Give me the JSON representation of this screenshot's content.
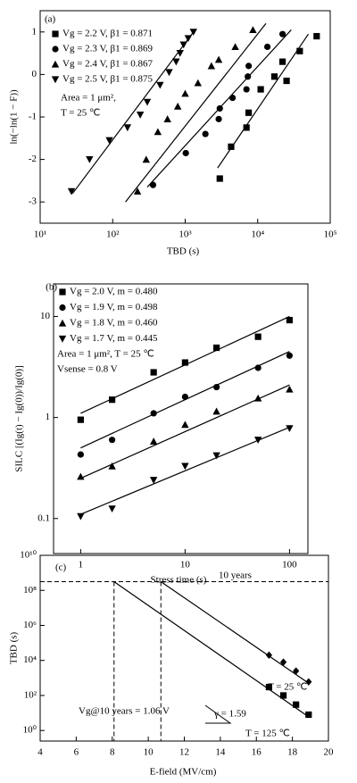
{
  "chart_data": [
    {
      "type": "scatter",
      "xlabel": "TBD (s)",
      "ylabel": "ln(−ln(1 − F))",
      "xlog": true,
      "xlim": [
        10,
        100000
      ],
      "xticks": [
        {
          "value": 10,
          "label": "10¹"
        },
        {
          "value": 100,
          "label": "10²"
        },
        {
          "value": 1000,
          "label": "10³"
        },
        {
          "value": 10000,
          "label": "10⁴"
        },
        {
          "value": 100000,
          "label": "10⁵"
        }
      ],
      "ylim": [
        -3.5,
        1.5
      ],
      "yticks": [
        -3,
        -2,
        -1,
        0,
        1
      ],
      "annotations": [
        "(a)",
        "Area = 1 μm²,",
        "T = 25 ℃"
      ],
      "series": [
        {
          "name": "Vg = 2.2 V, β1 = 0.871",
          "color": "#000000",
          "marker": "square",
          "x": [
            3000,
            4300,
            7000,
            7500,
            11000,
            17000,
            22000,
            25000,
            38000,
            65000
          ],
          "values": [
            -2.45,
            -1.7,
            -1.25,
            -0.9,
            -0.35,
            -0.05,
            0.3,
            -0.15,
            0.55,
            0.9
          ],
          "fit": {
            "x": [
              2800,
              50000
            ],
            "y": [
              -2.2,
              0.95
            ]
          }
        },
        {
          "name": "Vg = 2.3 V, β1 = 0.869",
          "color": "#000000",
          "marker": "circle",
          "x": [
            360,
            1020,
            1900,
            2900,
            3000,
            4500,
            7000,
            7300,
            7500,
            13600,
            22000
          ],
          "values": [
            -2.6,
            -1.85,
            -1.4,
            -1.05,
            -0.8,
            -0.55,
            -0.35,
            -0.05,
            0.2,
            0.65,
            0.95
          ],
          "fit": {
            "x": [
              300,
              29000
            ],
            "y": [
              -2.65,
              1.05
            ]
          }
        },
        {
          "name": "Vg = 2.4 V, β1 = 0.867",
          "color": "#000000",
          "marker": "triangle-up",
          "x": [
            220,
            290,
            420,
            570,
            790,
            1000,
            1500,
            2300,
            2900,
            4900,
            8600
          ],
          "values": [
            -2.75,
            -2.0,
            -1.35,
            -1.05,
            -0.75,
            -0.45,
            -0.2,
            0.2,
            0.35,
            0.65,
            1.05
          ],
          "fit": {
            "x": [
              150,
              13000
            ],
            "y": [
              -3.0,
              1.2
            ]
          }
        },
        {
          "name": "Vg = 2.5 V, β1 = 0.875",
          "color": "#000000",
          "marker": "triangle-down",
          "x": [
            27,
            48,
            90,
            160,
            240,
            300,
            450,
            600,
            750,
            850,
            950,
            1100,
            1300
          ],
          "values": [
            -2.75,
            -2.0,
            -1.55,
            -1.25,
            -0.95,
            -0.65,
            -0.25,
            0.05,
            0.3,
            0.5,
            0.7,
            0.85,
            1.0
          ],
          "fit": {
            "x": [
              28,
              1300
            ],
            "y": [
              -2.8,
              1.0
            ]
          }
        }
      ]
    },
    {
      "type": "scatter",
      "xlabel": "Stress time (s)",
      "ylabel": "SILC [(Ig(t) − Ig(0))/Ig(0)]",
      "xlog": true,
      "ylog": true,
      "xlim": [
        0.55,
        150
      ],
      "xticks": [
        1,
        10,
        100
      ],
      "ylim": [
        0.045,
        21
      ],
      "yticks": [
        0.1,
        1,
        10
      ],
      "annotations": [
        "(b)",
        "Area = 1 μm², T = 25 ℃",
        "Vsense = 0.8 V"
      ],
      "series": [
        {
          "name": "Vg = 2.0 V, m = 0.480",
          "color": "#000000",
          "marker": "square",
          "x": [
            1,
            2,
            5,
            10,
            20,
            50,
            100
          ],
          "values": [
            0.95,
            1.5,
            2.8,
            3.5,
            4.9,
            6.3,
            9.2
          ],
          "fit": {
            "x": [
              1,
              100
            ],
            "y": [
              1.1,
              10
            ]
          }
        },
        {
          "name": "Vg = 1.9 V, m = 0.498",
          "color": "#000000",
          "marker": "circle",
          "x": [
            1,
            2,
            5,
            10,
            20,
            50,
            100
          ],
          "values": [
            0.43,
            0.6,
            1.1,
            1.6,
            2.0,
            3.1,
            4.1
          ],
          "fit": {
            "x": [
              1,
              100
            ],
            "y": [
              0.5,
              4.5
            ]
          }
        },
        {
          "name": "Vg = 1.8 V, m = 0.460",
          "color": "#000000",
          "marker": "triangle-up",
          "x": [
            1,
            2,
            5,
            10,
            20,
            50,
            100
          ],
          "values": [
            0.26,
            0.33,
            0.58,
            0.85,
            1.15,
            1.55,
            1.9
          ],
          "fit": {
            "x": [
              1,
              100
            ],
            "y": [
              0.25,
              2.1
            ]
          }
        },
        {
          "name": "Vg = 1.7 V, m = 0.445",
          "color": "#000000",
          "marker": "triangle-down",
          "x": [
            1,
            2,
            5,
            10,
            20,
            50,
            100
          ],
          "values": [
            0.105,
            0.125,
            0.24,
            0.33,
            0.42,
            0.6,
            0.78
          ],
          "fit": {
            "x": [
              1,
              100
            ],
            "y": [
              0.11,
              0.8
            ]
          }
        }
      ]
    },
    {
      "type": "scatter",
      "xlabel": "E-field (MV/cm)",
      "ylabel": "TBD (s)",
      "ylog": true,
      "xlim": [
        4,
        20
      ],
      "xticks": [
        4,
        6,
        8,
        10,
        12,
        14,
        16,
        18,
        20
      ],
      "ylim": [
        0.25,
        10000000000
      ],
      "yticks": [
        {
          "value": 1,
          "label": "10⁰"
        },
        {
          "value": 100,
          "label": "10²"
        },
        {
          "value": 10000,
          "label": "10⁴"
        },
        {
          "value": 1000000,
          "label": "10⁶"
        },
        {
          "value": 100000000,
          "label": "10⁸"
        },
        {
          "value": 10000000000,
          "label": "10¹⁰"
        }
      ],
      "hline": 315000000,
      "vlines": [
        8.1,
        10.7
      ],
      "annotations": [
        "(c)",
        "10 years",
        "T = 25 ℃",
        "T = 125 ℃",
        "γ = 1.59",
        "Vg@10 years = 1.06 V"
      ],
      "series": [
        {
          "color": "#000000",
          "marker": "diamond",
          "x": [
            16.7,
            17.5,
            18.2,
            18.9
          ],
          "values": [
            20000,
            8000,
            2500,
            600
          ],
          "fit": {
            "x": [
              10.7,
              18.9
            ],
            "y": [
              315000000,
              500
            ]
          }
        },
        {
          "color": "#000000",
          "marker": "square",
          "x": [
            16.7,
            17.5,
            18.2,
            18.9
          ],
          "values": [
            300,
            100,
            30,
            8
          ],
          "fit": {
            "x": [
              8.1,
              18.9
            ],
            "y": [
              315000000,
              6
            ]
          }
        }
      ]
    }
  ]
}
